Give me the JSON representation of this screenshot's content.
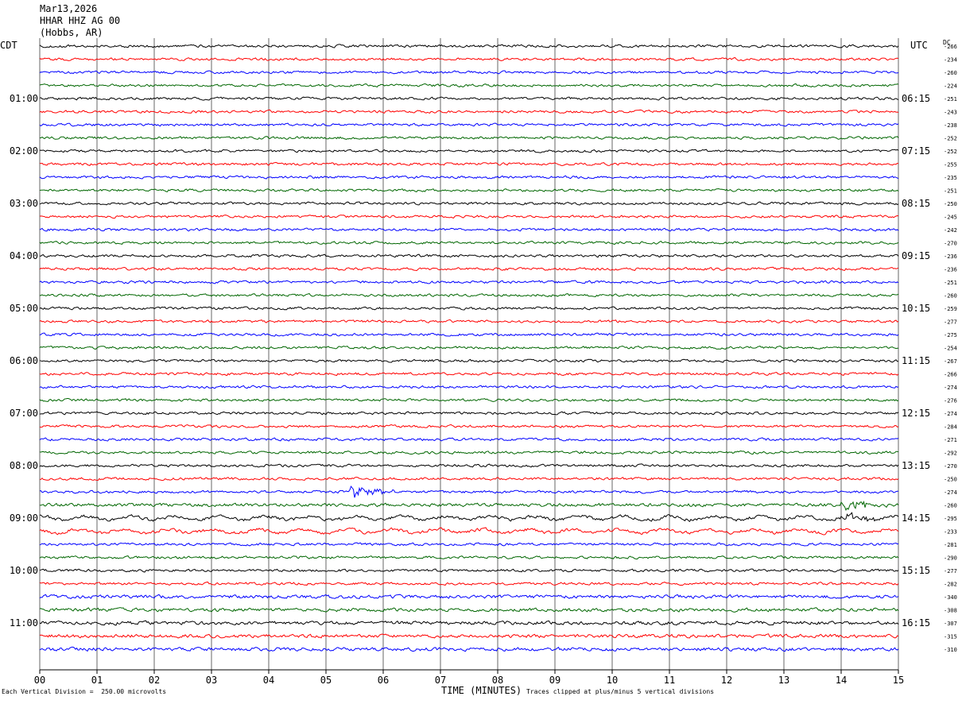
{
  "header": {
    "date": "Mar13,2026",
    "station": "HHAR HHZ AG 00",
    "location": "(Hobbs, AR)"
  },
  "left_label": "CDT",
  "right_label": "UTC",
  "dc_label": "DC",
  "footer": {
    "scale_text": "Each Vertical Division =  250.00 microvolts",
    "xlabel": "TIME (MINUTES)",
    "clip_text": "Traces clipped at plus/minus 5 vertical divisions"
  },
  "colors": {
    "cycle": [
      "#000000",
      "#ff0000",
      "#0000ff",
      "#006600"
    ],
    "grid": "#000000"
  },
  "chart_data": {
    "type": "line",
    "title": "HHAR HHZ AG 00",
    "xlabel": "TIME (MINUTES)",
    "x_ticks": [
      "00",
      "01",
      "02",
      "03",
      "04",
      "05",
      "06",
      "07",
      "08",
      "09",
      "10",
      "11",
      "12",
      "13",
      "14",
      "15"
    ],
    "xlim": [
      0,
      15
    ],
    "left_hour_labels": [
      {
        "row": 4,
        "label": "01:00"
      },
      {
        "row": 8,
        "label": "02:00"
      },
      {
        "row": 12,
        "label": "03:00"
      },
      {
        "row": 16,
        "label": "04:00"
      },
      {
        "row": 20,
        "label": "05:00"
      },
      {
        "row": 24,
        "label": "06:00"
      },
      {
        "row": 28,
        "label": "07:00"
      },
      {
        "row": 32,
        "label": "08:00"
      },
      {
        "row": 36,
        "label": "09:00"
      },
      {
        "row": 40,
        "label": "10:00"
      },
      {
        "row": 44,
        "label": "11:00"
      }
    ],
    "right_hour_labels": [
      {
        "row": 4,
        "label": "06:15"
      },
      {
        "row": 8,
        "label": "07:15"
      },
      {
        "row": 12,
        "label": "08:15"
      },
      {
        "row": 16,
        "label": "09:15"
      },
      {
        "row": 20,
        "label": "10:15"
      },
      {
        "row": 24,
        "label": "11:15"
      },
      {
        "row": 28,
        "label": "12:15"
      },
      {
        "row": 32,
        "label": "13:15"
      },
      {
        "row": 36,
        "label": "14:15"
      },
      {
        "row": 40,
        "label": "15:15"
      },
      {
        "row": 44,
        "label": "16:15"
      }
    ],
    "dc_offsets": [
      "-266",
      "-234",
      "-260",
      "-224",
      "-251",
      "-243",
      "-238",
      "-252",
      "-252",
      "-255",
      "-235",
      "-251",
      "-250",
      "-245",
      "-242",
      "-270",
      "-236",
      "-236",
      "-251",
      "-260",
      "-259",
      "-277",
      "-275",
      "-254",
      "-267",
      "-266",
      "-274",
      "-276",
      "-274",
      "-284",
      "-271",
      "-292",
      "-270",
      "-250",
      "-274",
      "-260",
      "-295",
      "-233",
      "-281",
      "-290",
      "-277",
      "-282",
      "-340",
      "-308",
      "-307",
      "-315",
      "-310"
    ],
    "events": [
      {
        "row": 34,
        "minute": 5.4,
        "amplitude": 2.2
      },
      {
        "row": 35,
        "minute": 14.0,
        "amplitude": 2.0
      },
      {
        "row": 36,
        "minute": 14.0,
        "amplitude": 1.6
      }
    ]
  }
}
